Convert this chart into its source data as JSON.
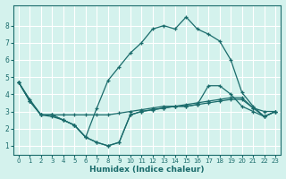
{
  "xlabel": "Humidex (Indice chaleur)",
  "bg_color": "#d4f2ed",
  "line_color": "#1a6b6b",
  "grid_color": "#ffffff",
  "xlim": [
    -0.5,
    23.5
  ],
  "ylim": [
    0.5,
    9.2
  ],
  "xticks": [
    0,
    1,
    2,
    3,
    4,
    5,
    6,
    7,
    8,
    9,
    10,
    11,
    12,
    13,
    14,
    15,
    16,
    17,
    18,
    19,
    20,
    21,
    22,
    23
  ],
  "yticks": [
    1,
    2,
    3,
    4,
    5,
    6,
    7,
    8
  ],
  "line_peak": [
    4.7,
    3.7,
    2.8,
    2.7,
    2.5,
    2.2,
    1.5,
    3.2,
    4.8,
    5.6,
    6.4,
    7.0,
    7.8,
    8.0,
    7.8,
    8.5,
    7.8,
    7.5,
    7.1,
    6.0,
    4.1,
    3.3,
    2.7,
    3.0
  ],
  "line_flat1": [
    4.7,
    3.6,
    2.8,
    2.8,
    2.8,
    2.8,
    2.8,
    2.8,
    2.8,
    2.9,
    3.0,
    3.1,
    3.2,
    3.3,
    3.3,
    3.4,
    3.5,
    3.6,
    3.7,
    3.8,
    3.8,
    3.2,
    3.0,
    3.0
  ],
  "line_flat2": [
    4.7,
    3.6,
    2.8,
    2.8,
    2.5,
    2.2,
    1.5,
    1.2,
    1.0,
    1.2,
    2.8,
    3.0,
    3.1,
    3.2,
    3.3,
    3.3,
    3.4,
    3.5,
    3.6,
    3.7,
    3.7,
    3.2,
    2.7,
    3.0
  ],
  "line_flat3": [
    4.7,
    3.6,
    2.8,
    2.8,
    2.5,
    2.2,
    1.5,
    1.2,
    1.0,
    1.2,
    2.8,
    3.0,
    3.1,
    3.2,
    3.3,
    3.3,
    3.4,
    4.5,
    4.5,
    4.0,
    3.3,
    3.0,
    2.7,
    3.0
  ]
}
